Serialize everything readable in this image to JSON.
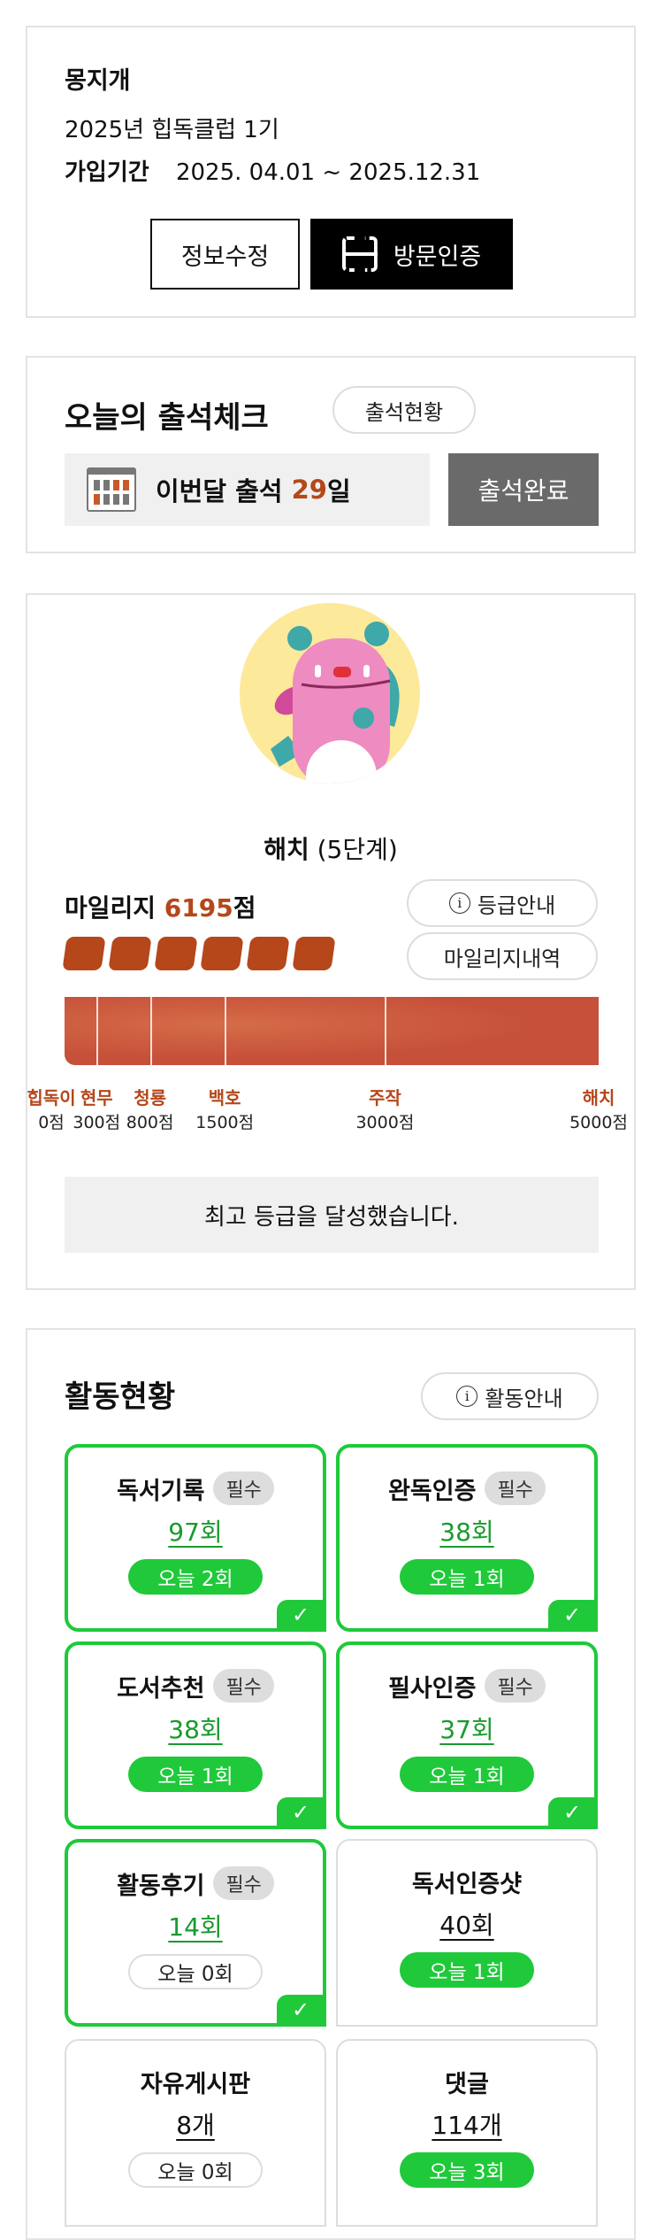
{
  "profile": {
    "name": "몽지개",
    "club": "2025년 힙독클럽 1기",
    "period_label": "가입기간",
    "period": "2025. 04.01 ~ 2025.12.31",
    "edit_button": "정보수정",
    "visit_button": "방문인증"
  },
  "attendance": {
    "title": "오늘의 출석체크",
    "status_button": "출석현황",
    "month_prefix": "이번달 출석 ",
    "month_count": "29",
    "month_suffix": "일",
    "done_button": "출석완료"
  },
  "grade": {
    "name": "해치",
    "stage": "(5단계)",
    "mileage_label": "마일리지 ",
    "mileage_value": "6195",
    "mileage_unit": "점",
    "guide_button": "등급안내",
    "history_button": "마일리지내역",
    "filled_blocks": 6,
    "levels": [
      {
        "name": "힙독이",
        "points": "0점"
      },
      {
        "name": "현무",
        "points": "300점"
      },
      {
        "name": "청룡",
        "points": "800점"
      },
      {
        "name": "백호",
        "points": "1500점"
      },
      {
        "name": "주작",
        "points": "3000점"
      },
      {
        "name": "해치",
        "points": "5000점"
      }
    ],
    "message": "최고 등급을 달성했습니다.",
    "progress_percent": 100
  },
  "activity": {
    "title": "활동현황",
    "guide_button": "활동안내",
    "required_label": "필수",
    "items": [
      {
        "title": "독서기록",
        "count": "97회",
        "today": "오늘 2회",
        "required": true,
        "done": true
      },
      {
        "title": "완독인증",
        "count": "38회",
        "today": "오늘 1회",
        "required": true,
        "done": true
      },
      {
        "title": "도서추천",
        "count": "38회",
        "today": "오늘 1회",
        "required": true,
        "done": true
      },
      {
        "title": "필사인증",
        "count": "37회",
        "today": "오늘 1회",
        "required": true,
        "done": true
      },
      {
        "title": "활동후기",
        "count": "14회",
        "today": "오늘 0회",
        "required": true,
        "done": true
      },
      {
        "title": "독서인증샷",
        "count": "40회",
        "today": "오늘 1회",
        "required": false,
        "done": false
      },
      {
        "title": "자유게시판",
        "count": "8개",
        "today": "오늘 0회",
        "required": false,
        "done": false
      },
      {
        "title": "댓글",
        "count": "114개",
        "today": "오늘 3회",
        "required": false,
        "done": false
      }
    ]
  },
  "colors": {
    "accent_orange": "#b5471a",
    "green": "#1fc93a",
    "bar": "#cc5a3c"
  }
}
